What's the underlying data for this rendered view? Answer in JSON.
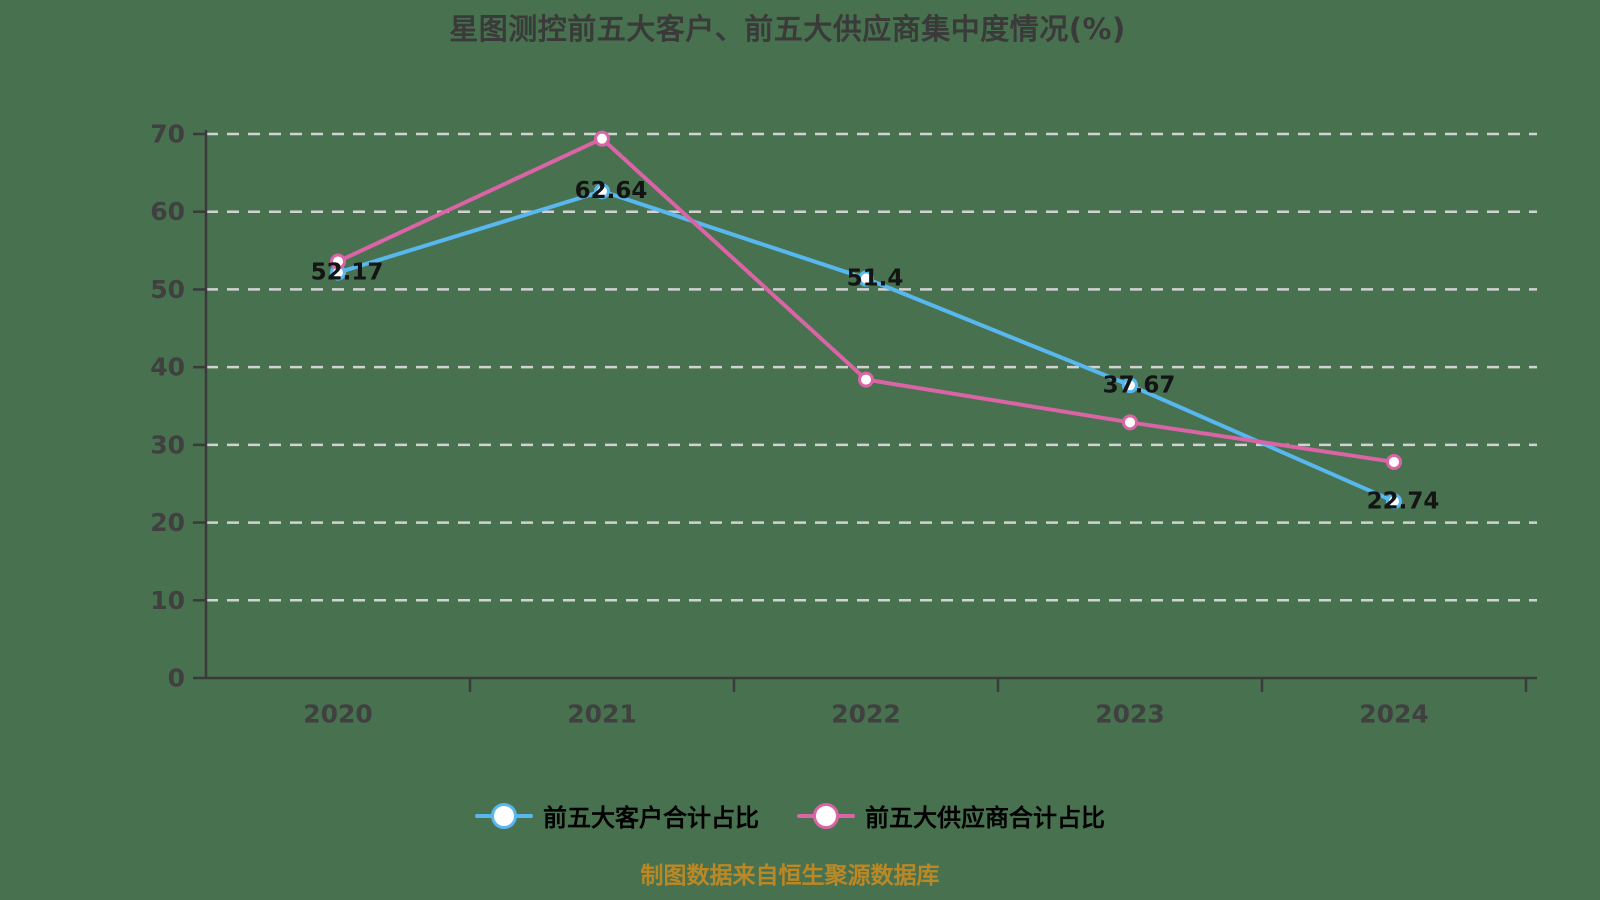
{
  "colors": {
    "background": "#48714f",
    "title_text": "#3a3a3a",
    "axis": "#3a3a3a",
    "tick_label": "#404040",
    "gridline": "#d2d2d2",
    "data_label": "#141414",
    "customers_line": "#58b7ef",
    "suppliers_line": "#da64a6",
    "source_note": "#bb8826"
  },
  "chart_data": {
    "type": "line",
    "title": "星图测控前五大客户、前五大供应商集中度情况(%)",
    "categories": [
      "2020",
      "2021",
      "2022",
      "2023",
      "2024"
    ],
    "series": [
      {
        "name": "前五大客户合计占比",
        "color": "#58b7ef",
        "values": [
          52.17,
          62.64,
          51.4,
          37.67,
          22.74
        ],
        "data_labels": [
          "52.17",
          "62.64",
          "51.4",
          "37.67",
          "22.74"
        ],
        "show_labels": true
      },
      {
        "name": "前五大供应商合计占比",
        "color": "#da64a6",
        "values": [
          53.6,
          69.4,
          38.4,
          32.9,
          27.8
        ],
        "data_labels": [],
        "show_labels": false
      }
    ],
    "xlabel": "",
    "ylabel": "",
    "ylim": [
      0,
      70
    ],
    "y_ticks": [
      0,
      10,
      20,
      30,
      40,
      50,
      60,
      70
    ],
    "y_tick_labels": [
      "0",
      "10",
      "20",
      "30",
      "40",
      "50",
      "60",
      "70"
    ],
    "grid": "horizontal-dashed",
    "legend_position": "bottom",
    "marker": "circle-white-fill",
    "source_note": "制图数据来自恒生聚源数据库"
  }
}
